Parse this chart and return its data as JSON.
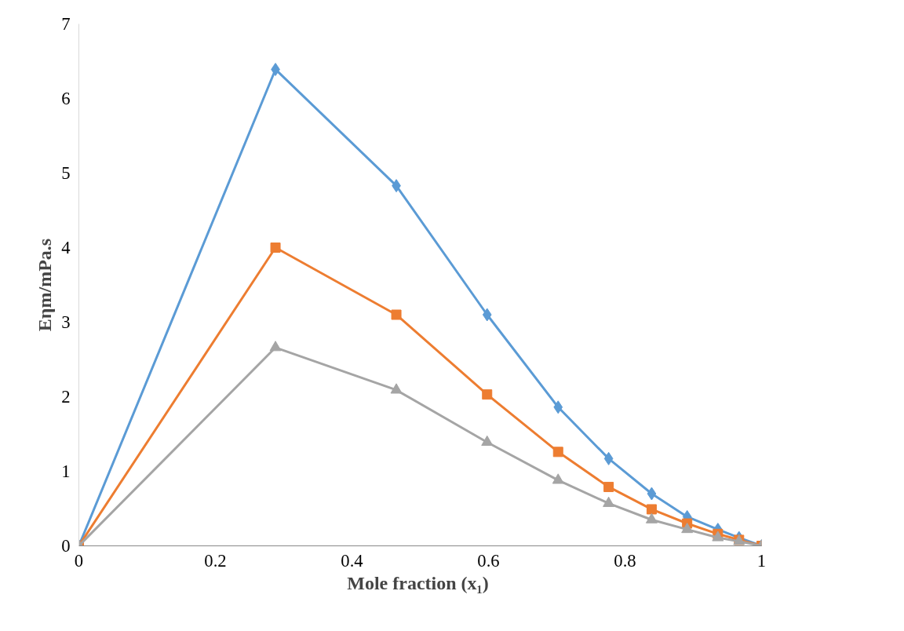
{
  "chart_data": {
    "type": "line",
    "xlabel": "Mole fraction  (x₁)",
    "ylabel": "Eηm/mPa.s",
    "x": [
      0,
      0.288,
      0.465,
      0.598,
      0.702,
      0.776,
      0.839,
      0.891,
      0.936,
      0.967,
      1
    ],
    "series": [
      {
        "color": "#5b9bd5",
        "marker": "diamond",
        "values": [
          0,
          6.39,
          4.83,
          3.1,
          1.86,
          1.17,
          0.7,
          0.39,
          0.22,
          0.11,
          0
        ]
      },
      {
        "color": "#ed7d31",
        "marker": "square",
        "values": [
          0,
          4.0,
          3.1,
          2.03,
          1.26,
          0.79,
          0.49,
          0.3,
          0.16,
          0.08,
          0
        ]
      },
      {
        "color": "#a5a5a5",
        "marker": "triangle",
        "values": [
          0,
          2.66,
          2.09,
          1.39,
          0.88,
          0.57,
          0.35,
          0.22,
          0.11,
          0.06,
          0
        ]
      }
    ],
    "xlim": [
      0,
      1
    ],
    "ylim": [
      0,
      7
    ],
    "xticks": [
      0,
      0.2,
      0.4,
      0.6,
      0.8,
      1
    ],
    "yticks": [
      0,
      1,
      2,
      3,
      4,
      5,
      6,
      7
    ],
    "grid": false,
    "line_style": "solid"
  }
}
